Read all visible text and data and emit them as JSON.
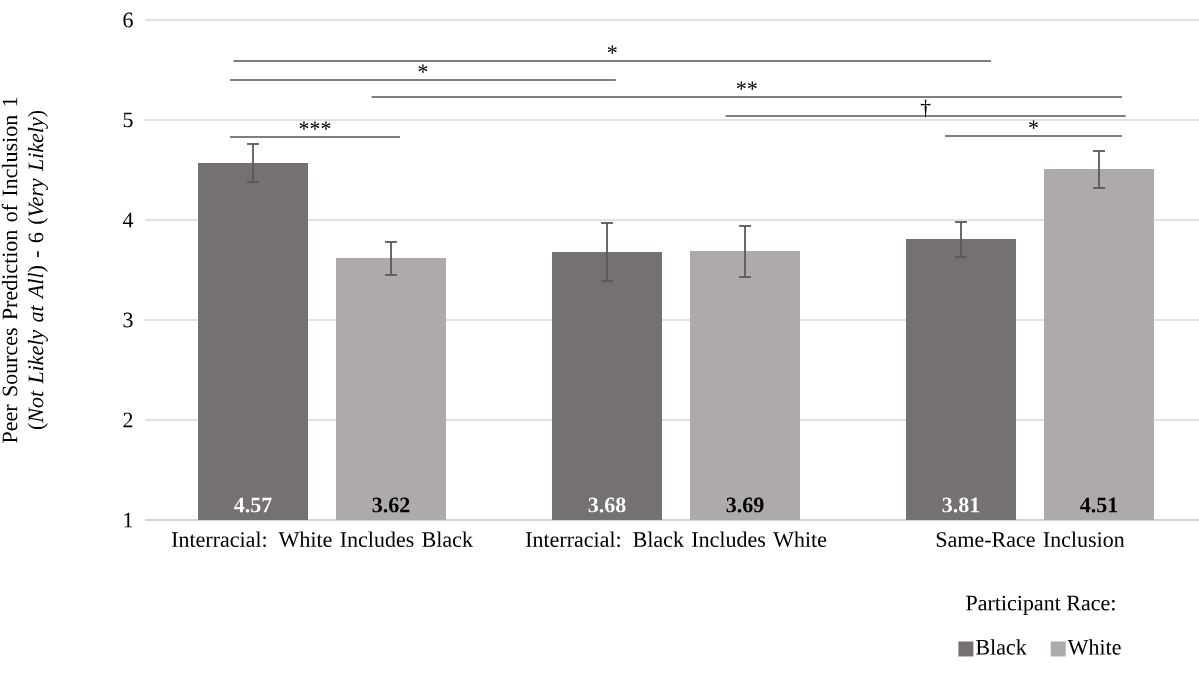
{
  "chart_data": {
    "type": "bar",
    "ylabel": "Peer Sources Prediction of Inclusion 1 (*Not Likely at All*) - 6 (*Very Likely*)",
    "legend_title": "Participant Race:",
    "categories": [
      "Interracial: White Includes Black",
      "Interracial: Black Includes White",
      "Same-Race Inclusion"
    ],
    "series": [
      {
        "name": "Black",
        "color": "#767171",
        "values": [
          4.57,
          3.68,
          3.81
        ],
        "errors": [
          [
            4.38,
            4.76
          ],
          [
            3.39,
            3.97
          ],
          [
            3.63,
            3.98
          ]
        ]
      },
      {
        "name": "White",
        "color": "#aeaaaa",
        "values": [
          3.62,
          3.69,
          4.51
        ],
        "errors": [
          [
            3.45,
            3.78
          ],
          [
            3.43,
            3.94
          ],
          [
            4.32,
            4.69
          ]
        ]
      }
    ],
    "ylim": [
      1,
      6
    ],
    "yticks": [
      1,
      2,
      3,
      4,
      5,
      6
    ],
    "grid": "y",
    "legend": "bottom right",
    "data_labels": true,
    "annotations": [
      "***",
      "*",
      "*",
      "**",
      "†",
      "*"
    ]
  }
}
